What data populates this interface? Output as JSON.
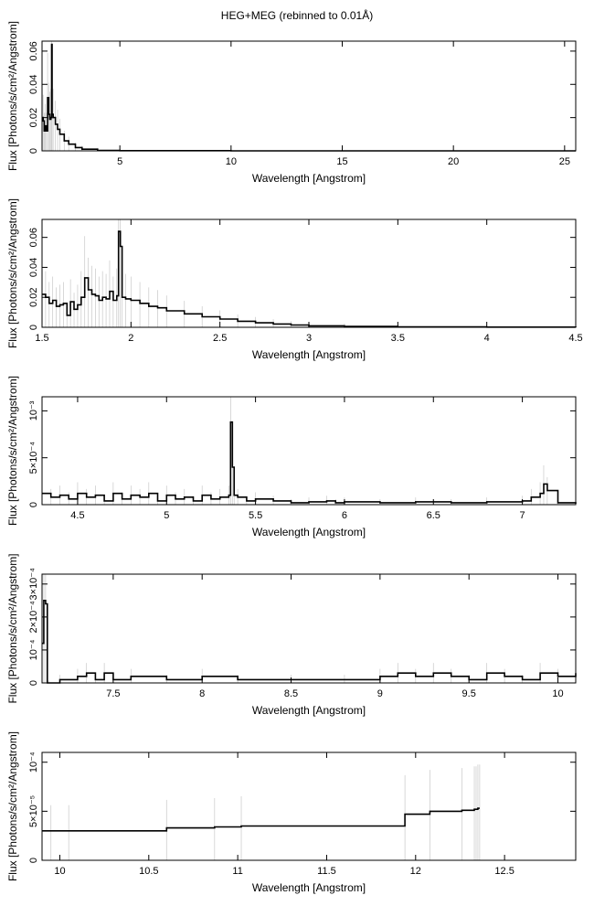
{
  "page": {
    "title": "HEG+MEG (rebinned to 0.01Å)"
  },
  "chart_data": [
    {
      "type": "line",
      "xlabel": "Wavelength [Angstrom]",
      "ylabel": "Flux [Photons/s/cm²/Angstrom]",
      "xlim": [
        1.5,
        25.5
      ],
      "ylim": [
        0,
        0.066
      ],
      "xticks": [
        5,
        10,
        15,
        20,
        25
      ],
      "xtick_labels": [
        "5",
        "10",
        "15",
        "20",
        "25"
      ],
      "yticks": [
        0,
        0.02,
        0.04,
        0.06
      ],
      "ytick_labels": [
        "0",
        "0.02",
        "0.04",
        "0.06"
      ],
      "series": [
        {
          "x": [
            1.5,
            1.55,
            1.6,
            1.65,
            1.7,
            1.75,
            1.8,
            1.85,
            1.9,
            1.93,
            1.95,
            2.0,
            2.1,
            2.2,
            2.3,
            2.5,
            2.7,
            3.0,
            3.3,
            4.0,
            5.0,
            10.0,
            15.0,
            20.0,
            25.5
          ],
          "y": [
            0.02,
            0.018,
            0.012,
            0.015,
            0.012,
            0.032,
            0.022,
            0.019,
            0.02,
            0.064,
            0.022,
            0.02,
            0.016,
            0.013,
            0.01,
            0.006,
            0.004,
            0.002,
            0.001,
            0.0003,
            0.0001,
            0.0,
            0.0,
            0.0,
            0.0
          ]
        }
      ]
    },
    {
      "type": "line",
      "xlabel": "Wavelength [Angstrom]",
      "ylabel": "Flux [Photons/s/cm²/Angstrom]",
      "xlim": [
        1.5,
        4.5
      ],
      "ylim": [
        0,
        0.072
      ],
      "xticks": [
        1.5,
        2,
        2.5,
        3,
        3.5,
        4,
        4.5
      ],
      "xtick_labels": [
        "1.5",
        "2",
        "2.5",
        "3",
        "3.5",
        "4",
        "4.5"
      ],
      "yticks": [
        0,
        0.02,
        0.04,
        0.06
      ],
      "ytick_labels": [
        "0",
        "0.02",
        "0.04",
        "0.06"
      ],
      "series": [
        {
          "x": [
            1.5,
            1.52,
            1.54,
            1.56,
            1.58,
            1.6,
            1.62,
            1.64,
            1.66,
            1.68,
            1.7,
            1.72,
            1.74,
            1.76,
            1.78,
            1.8,
            1.82,
            1.84,
            1.86,
            1.88,
            1.9,
            1.92,
            1.93,
            1.94,
            1.95,
            1.97,
            2.0,
            2.05,
            2.1,
            2.15,
            2.2,
            2.3,
            2.4,
            2.5,
            2.6,
            2.7,
            2.8,
            2.9,
            3.0,
            3.2,
            3.5,
            4.0,
            4.5
          ],
          "y": [
            0.022,
            0.02,
            0.016,
            0.018,
            0.014,
            0.015,
            0.016,
            0.008,
            0.017,
            0.012,
            0.015,
            0.02,
            0.033,
            0.025,
            0.022,
            0.021,
            0.018,
            0.02,
            0.019,
            0.024,
            0.018,
            0.021,
            0.064,
            0.054,
            0.02,
            0.019,
            0.018,
            0.016,
            0.014,
            0.013,
            0.011,
            0.009,
            0.007,
            0.0055,
            0.004,
            0.003,
            0.0022,
            0.0015,
            0.001,
            0.0006,
            0.0003,
            0.0001,
            0.0
          ]
        }
      ]
    },
    {
      "type": "line",
      "xlabel": "Wavelength [Angstrom]",
      "ylabel": "Flux [Photons/s/cm²/Angstrom]",
      "xlim": [
        4.3,
        7.3
      ],
      "ylim": [
        0,
        0.00115
      ],
      "xticks": [
        4.5,
        5,
        5.5,
        6,
        6.5,
        7
      ],
      "xtick_labels": [
        "4.5",
        "5",
        "5.5",
        "6",
        "6.5",
        "7"
      ],
      "yticks": [
        0,
        0.0005,
        0.001
      ],
      "ytick_labels": [
        "0",
        "5×10⁻⁴",
        "10⁻³"
      ],
      "series": [
        {
          "x": [
            4.3,
            4.35,
            4.4,
            4.45,
            4.5,
            4.55,
            4.6,
            4.65,
            4.7,
            4.75,
            4.8,
            4.85,
            4.9,
            4.95,
            5.0,
            5.05,
            5.1,
            5.15,
            5.2,
            5.25,
            5.3,
            5.35,
            5.36,
            5.37,
            5.38,
            5.4,
            5.45,
            5.5,
            5.6,
            5.7,
            5.8,
            5.9,
            5.95,
            6.0,
            6.2,
            6.4,
            6.6,
            6.8,
            7.0,
            7.05,
            7.1,
            7.12,
            7.14,
            7.2,
            7.3
          ],
          "y": [
            0.00012,
            8e-05,
            0.0001,
            6e-05,
            0.00012,
            8e-05,
            0.0001,
            4e-05,
            0.00012,
            6e-05,
            0.0001,
            8e-05,
            0.00012,
            4e-05,
            0.0001,
            6e-05,
            8e-05,
            4e-05,
            0.0001,
            6e-05,
            8e-05,
            0.0001,
            0.00088,
            0.0004,
            0.0001,
            8e-05,
            4e-05,
            6e-05,
            4e-05,
            2e-05,
            3e-05,
            4e-05,
            2e-05,
            3e-05,
            2e-05,
            3e-05,
            2e-05,
            3e-05,
            4e-05,
            8e-05,
            0.00012,
            0.00022,
            0.00015,
            2e-05,
            1e-05
          ]
        }
      ]
    },
    {
      "type": "line",
      "xlabel": "Wavelength [Angstrom]",
      "ylabel": "Flux [Photons/s/cm²/Angstrom]",
      "xlim": [
        7.1,
        10.1
      ],
      "ylim": [
        0,
        0.00033
      ],
      "xticks": [
        7.5,
        8,
        8.5,
        9,
        9.5,
        10
      ],
      "xtick_labels": [
        "7.5",
        "8",
        "8.5",
        "9",
        "9.5",
        "10"
      ],
      "yticks": [
        0,
        0.0001,
        0.0002,
        0.0003
      ],
      "ytick_labels": [
        "0",
        "10⁻⁴",
        "2×10⁻⁴",
        "3×10⁻⁴"
      ],
      "series": [
        {
          "x": [
            7.1,
            7.11,
            7.12,
            7.13,
            7.14,
            7.2,
            7.3,
            7.35,
            7.4,
            7.45,
            7.5,
            7.6,
            7.8,
            8.0,
            8.2,
            8.5,
            8.8,
            9.0,
            9.1,
            9.2,
            9.3,
            9.4,
            9.5,
            9.6,
            9.7,
            9.8,
            9.9,
            10.0,
            10.1
          ],
          "y": [
            0.00012,
            0.00025,
            0.00024,
            0.0,
            0.0,
            1e-05,
            2e-05,
            3e-05,
            1e-05,
            3e-05,
            1e-05,
            2e-05,
            1e-05,
            2e-05,
            1e-05,
            1e-05,
            1e-05,
            2e-05,
            3e-05,
            2e-05,
            3e-05,
            2e-05,
            1e-05,
            3e-05,
            2e-05,
            1e-05,
            3e-05,
            2e-05,
            3e-05
          ]
        }
      ]
    },
    {
      "type": "line",
      "xlabel": "Wavelength [Angstrom]",
      "ylabel": "Flux [Photons/s/cm²/Angstrom]",
      "xlim": [
        9.9,
        12.9
      ],
      "ylim": [
        0,
        0.00011
      ],
      "xticks": [
        10,
        10.5,
        11,
        11.5,
        12,
        12.5
      ],
      "xtick_labels": [
        "10",
        "10.5",
        "11",
        "11.5",
        "12",
        "12.5"
      ],
      "yticks": [
        0,
        5e-05,
        0.0001
      ],
      "ytick_labels": [
        "0",
        "5×10⁻⁵",
        "10⁻⁴"
      ],
      "series": [
        {
          "x": [
            9.9,
            9.95,
            10.05,
            10.6,
            10.87,
            11.02,
            11.94,
            12.08,
            12.26,
            12.33,
            12.34,
            12.35,
            12.36
          ],
          "y": [
            3e-05,
            3e-05,
            3e-05,
            3.3e-05,
            3.4e-05,
            3.5e-05,
            4.7e-05,
            5e-05,
            5.1e-05,
            5.2e-05,
            5.2e-05,
            5.3e-05,
            5.3e-05
          ]
        }
      ]
    }
  ]
}
